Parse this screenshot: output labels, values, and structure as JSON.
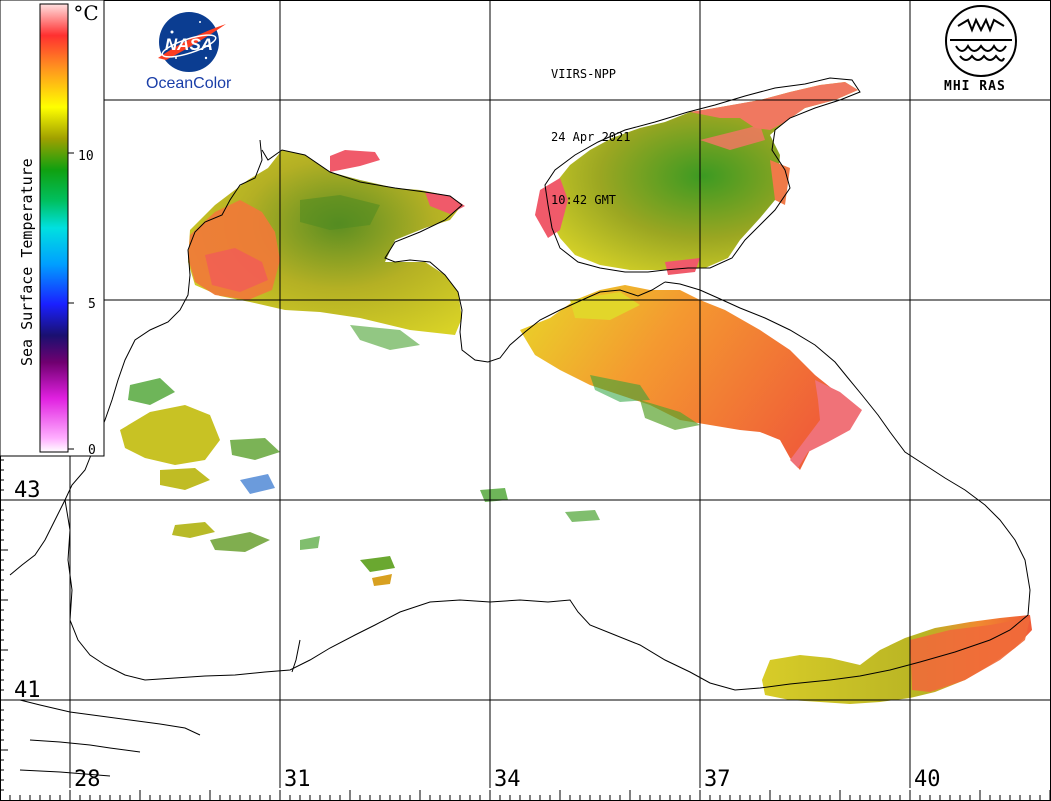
{
  "satellite": "VIIRS-NPP",
  "date": "24 Apr 2021",
  "time": "10:42 GMT",
  "agency_left": "OceanColor",
  "agency_right": "MHI RAS",
  "legend": {
    "title": "Sea Surface Temperature",
    "unit": "°C",
    "ticks": [
      {
        "value": 0,
        "label": "0"
      },
      {
        "value": 5,
        "label": "5"
      },
      {
        "value": 10,
        "label": "10"
      }
    ],
    "range": [
      0,
      15
    ]
  },
  "longitudes": [
    {
      "value": 28,
      "label": "28"
    },
    {
      "value": 31,
      "label": "31"
    },
    {
      "value": 34,
      "label": "34"
    },
    {
      "value": 37,
      "label": "37"
    },
    {
      "value": 40,
      "label": "40"
    }
  ],
  "latitudes": [
    {
      "value": 43,
      "label": "43"
    },
    {
      "value": 41,
      "label": "41"
    }
  ],
  "colors": {
    "warm": "#f0703a",
    "mid": "#c8c020",
    "cool": "#3a9a20",
    "hot": "#f05a6a",
    "coast": "#000000"
  }
}
